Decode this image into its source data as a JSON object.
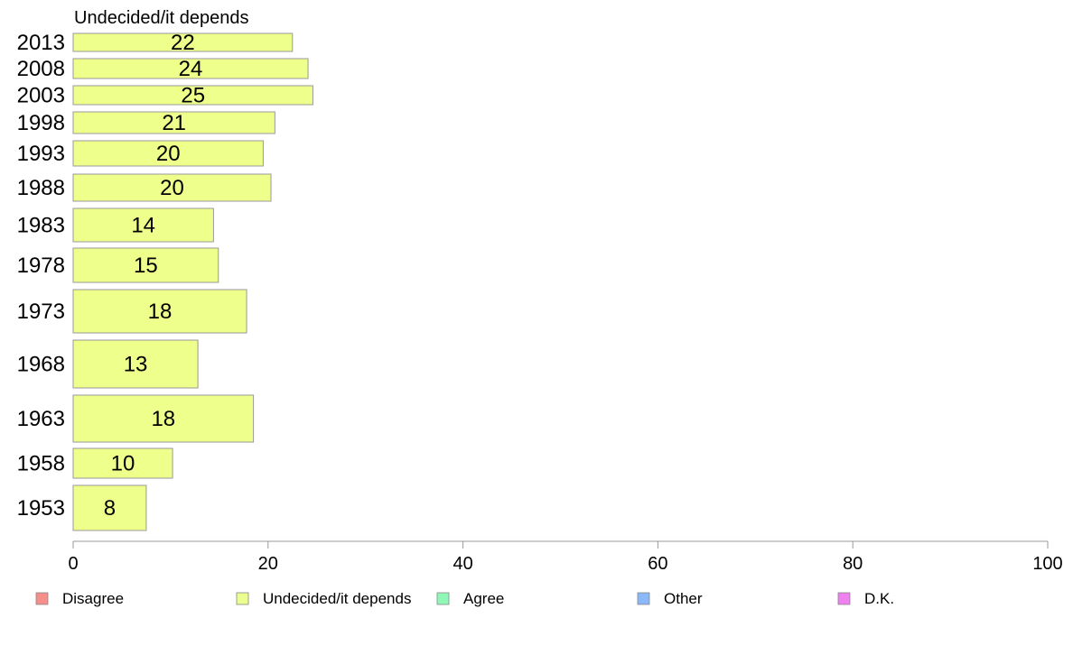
{
  "chart_data": {
    "type": "bar",
    "orientation": "horizontal",
    "title": "Undecided/it depends",
    "categories": [
      "2013",
      "2008",
      "2003",
      "1998",
      "1993",
      "1988",
      "1983",
      "1978",
      "1973",
      "1968",
      "1963",
      "1958",
      "1953"
    ],
    "values": [
      22.5,
      24.1,
      24.6,
      20.7,
      19.5,
      20.3,
      14.4,
      14.9,
      17.8,
      12.8,
      18.5,
      10.2,
      7.5
    ],
    "value_labels": [
      "22",
      "24",
      "25",
      "21",
      "20",
      "20",
      "14",
      "15",
      "18",
      "13",
      "18",
      "10",
      "8"
    ],
    "xlim": [
      0,
      100
    ],
    "xticks": [
      "0",
      "20",
      "40",
      "60",
      "80",
      "100"
    ],
    "grid": false,
    "legend_position": "bottom",
    "legend": [
      {
        "label": "Disagree",
        "color": "#f68f8a"
      },
      {
        "label": "Undecided/it depends",
        "color": "#eaff8f"
      },
      {
        "label": "Agree",
        "color": "#8ff8b6"
      },
      {
        "label": "Other",
        "color": "#8ab8f8"
      },
      {
        "label": "D.K.",
        "color": "#ee80f0"
      }
    ],
    "bar_color": "#eeff8c",
    "bar_stroke": "#999999"
  }
}
